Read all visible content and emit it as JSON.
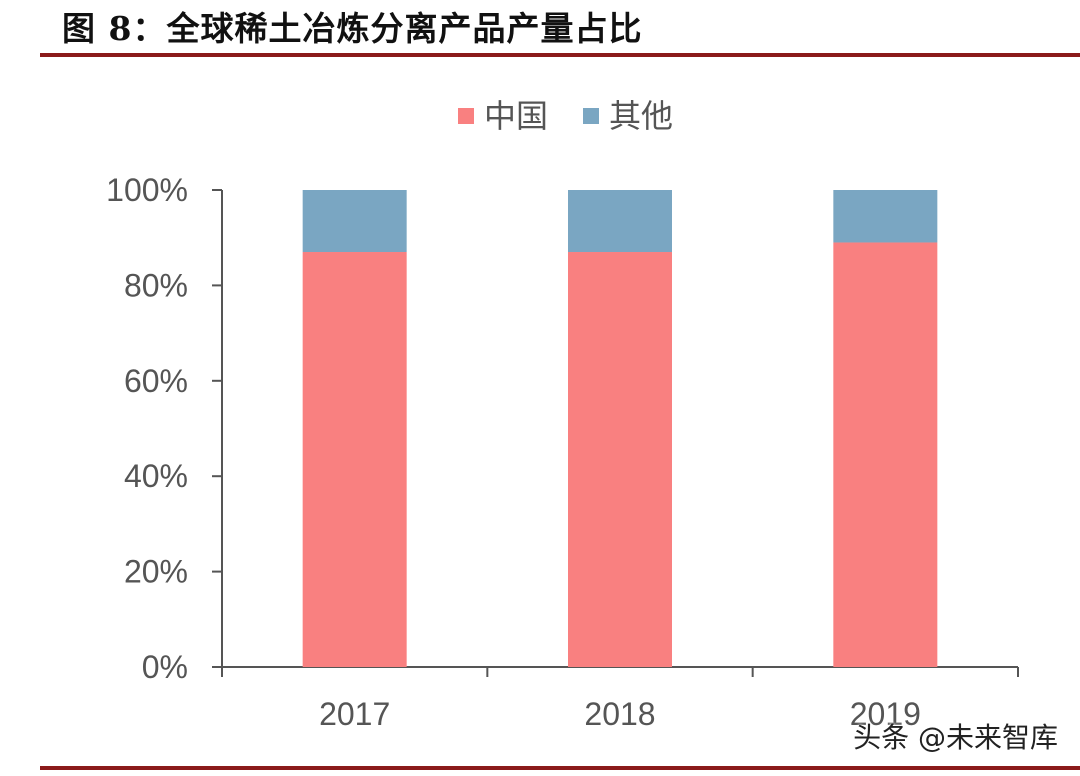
{
  "title": "图 8：全球稀土冶炼分离产品产量占比",
  "watermark": "头条 @未来智库",
  "colors": {
    "china": "#f98080",
    "other": "#7aa6c2",
    "rule": "#8b1a1a",
    "axis": "#555555"
  },
  "chart_data": {
    "type": "bar",
    "stacked": true,
    "categories": [
      "2017",
      "2018",
      "2019"
    ],
    "series": [
      {
        "name": "中国",
        "values": [
          87,
          87,
          89
        ]
      },
      {
        "name": "其他",
        "values": [
          13,
          13,
          11
        ]
      }
    ],
    "ylim": [
      0,
      100
    ],
    "yticks": [
      "0%",
      "20%",
      "40%",
      "60%",
      "80%",
      "100%"
    ],
    "legend": "top",
    "grid": false
  }
}
